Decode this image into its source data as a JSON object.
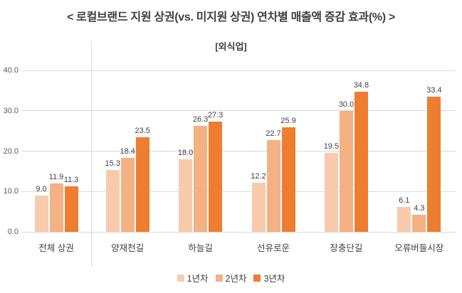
{
  "colors": {
    "grid": "#D9D9D9",
    "axis_text": "#595959",
    "label_text": "#404040",
    "series1": "#F8CBAD",
    "series2": "#F4B183",
    "series3": "#ED7D31"
  },
  "chart_data": {
    "type": "bar",
    "title": "< 로컬브랜드 지원 상권(vs. 미지원 상권) 연차별 매출액 증감 효과(%) >",
    "subtitle": "[외식업]",
    "categories": [
      "전체 상권",
      "양재천길",
      "하늘길",
      "선유로운",
      "장충단길",
      "오류버들시장"
    ],
    "series": [
      {
        "name": "1년차",
        "color": "#F8CBAD",
        "values": [
          9.0,
          15.3,
          18.0,
          12.2,
          19.5,
          6.1
        ]
      },
      {
        "name": "2년차",
        "color": "#F4B183",
        "values": [
          11.9,
          18.4,
          26.3,
          22.7,
          30.0,
          4.3
        ]
      },
      {
        "name": "3년차",
        "color": "#ED7D31",
        "values": [
          11.3,
          23.5,
          27.3,
          25.9,
          34.8,
          33.4
        ]
      }
    ],
    "ylim": [
      0,
      40
    ],
    "y_tick_labels": [
      "0.0",
      "10.0",
      "20.0",
      "30.0",
      "40.0"
    ],
    "grid": true,
    "legend_position": "bottom",
    "separator_after_category": "전체 상권",
    "value_labels_shown": true
  }
}
